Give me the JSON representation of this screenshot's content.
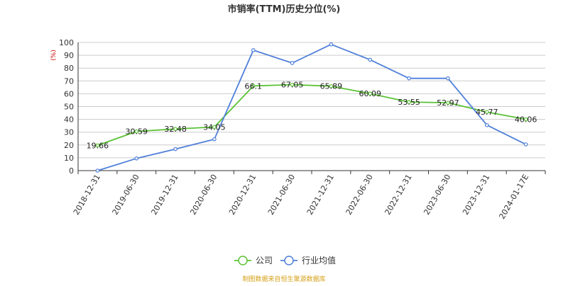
{
  "chart_data": {
    "type": "line",
    "title": "市销率(TTM)历史分位(%)",
    "ylabel": "(%)",
    "ylim": [
      0,
      100
    ],
    "yticks": [
      0,
      10,
      20,
      30,
      40,
      50,
      60,
      70,
      80,
      90,
      100
    ],
    "categories": [
      "2018-12-31",
      "2019-06-30",
      "2019-12-31",
      "2020-06-30",
      "2020-12-31",
      "2021-06-30",
      "2021-12-31",
      "2022-06-30",
      "2022-12-31",
      "2023-06-30",
      "2023-12-31",
      "2024-01-17E"
    ],
    "grid": "horizontal",
    "legend_position": "bottom-center",
    "series": [
      {
        "name": "公司",
        "color": "#5bc236",
        "values": [
          19.66,
          30.59,
          32.48,
          34.05,
          66.1,
          67.05,
          65.89,
          60.09,
          53.55,
          52.97,
          45.77,
          40.06
        ],
        "labels": [
          "19.66",
          "30.59",
          "32.48",
          "34.05",
          "66.1",
          "67.05",
          "65.89",
          "60.09",
          "53.55",
          "52.97",
          "45.77",
          "40.06"
        ]
      },
      {
        "name": "行业均值",
        "color": "#4f7fd9",
        "values": [
          0,
          9.5,
          16.8,
          24.5,
          94,
          84,
          98.5,
          86.5,
          72,
          72,
          35.5,
          20.5
        ]
      }
    ]
  },
  "footer": {
    "source": "制图数据来自恒生聚源数据库"
  }
}
